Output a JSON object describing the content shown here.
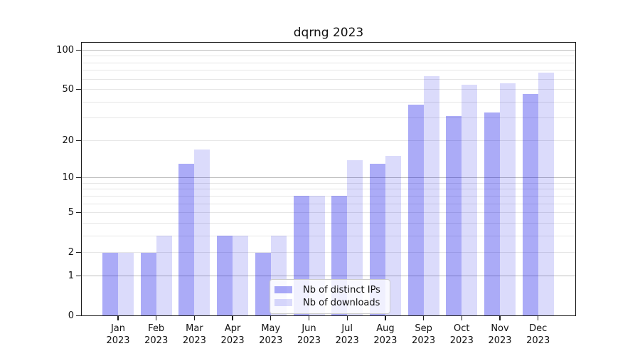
{
  "title": "dqrng 2023",
  "chart_data": {
    "type": "bar",
    "title": "dqrng 2023",
    "categories": [
      "Jan 2023",
      "Feb 2023",
      "Mar 2023",
      "Apr 2023",
      "May 2023",
      "Jun 2023",
      "Jul 2023",
      "Aug 2023",
      "Sep 2023",
      "Oct 2023",
      "Nov 2023",
      "Dec 2023"
    ],
    "series": [
      {
        "name": "Nb of distinct IPs",
        "color": "rgba(0,0,230,0.33)",
        "color_hex": "#aaaaf8",
        "values": [
          2,
          2,
          13,
          3,
          2,
          7,
          7,
          13,
          38,
          31,
          33,
          46
        ]
      },
      {
        "name": "Nb of downloads",
        "color": "rgba(0,0,230,0.14)",
        "color_hex": "#dbdbf9",
        "values": [
          2,
          3,
          17,
          3,
          3,
          7,
          14,
          15,
          63,
          54,
          56,
          67
        ]
      }
    ],
    "xlabel": "",
    "ylabel": "",
    "yscale": "log1p",
    "ylim": [
      0,
      115
    ],
    "yticks": [
      100,
      50,
      20,
      10,
      5,
      2,
      1,
      0
    ],
    "minor_gridlines": [
      2,
      3,
      4,
      5,
      6,
      7,
      8,
      9,
      20,
      30,
      40,
      50,
      60,
      70,
      80,
      90
    ],
    "major_gridlines": [
      1,
      10,
      100
    ],
    "grid": {
      "on": true,
      "minor_color": "#e6e6e6",
      "major_color": "#bdbdbd"
    },
    "legend": {
      "position": "lower center",
      "background": "rgba(255,255,255,0.82)",
      "border_color": "#cccccc"
    }
  }
}
